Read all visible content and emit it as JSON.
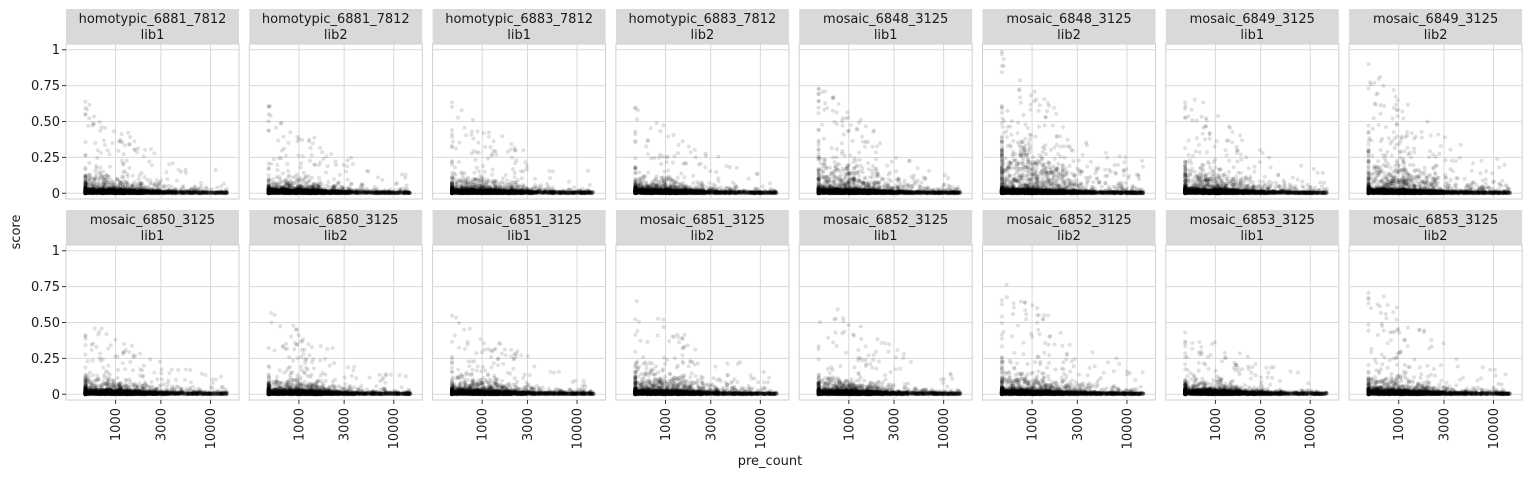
{
  "chart_data": {
    "type": "scatter",
    "layout": "facet-grid",
    "xlabel": "pre_count",
    "ylabel": "score",
    "x_scale": "log10",
    "xlim": [
      300,
      20000
    ],
    "x_ticks": [
      1000,
      3000,
      10000
    ],
    "x_tick_labels": [
      "1000",
      "3000",
      "10000"
    ],
    "ylim": [
      -0.04,
      1.04
    ],
    "y_ticks": [
      0,
      0.25,
      0.5,
      0.75,
      1
    ],
    "y_tick_labels": [
      "0",
      "0.25",
      "0.50",
      "0.75",
      "1"
    ],
    "grid": true,
    "strip_color": "#d9d9d9",
    "point_color": "#000000",
    "point_opacity": 0.12,
    "grid_color": "#d9d9d9",
    "panels": [
      {
        "name": "homotypic_6881_7812",
        "lib": "lib1",
        "x_range": [
          480,
          15000
        ],
        "max_score": 0.64,
        "spread": 0.06,
        "points": 2600
      },
      {
        "name": "homotypic_6881_7812",
        "lib": "lib2",
        "x_range": [
          480,
          15000
        ],
        "max_score": 0.62,
        "spread": 0.05,
        "points": 2600
      },
      {
        "name": "homotypic_6883_7812",
        "lib": "lib1",
        "x_range": [
          480,
          15000
        ],
        "max_score": 0.64,
        "spread": 0.05,
        "points": 2600
      },
      {
        "name": "homotypic_6883_7812",
        "lib": "lib2",
        "x_range": [
          480,
          15000
        ],
        "max_score": 0.61,
        "spread": 0.05,
        "points": 2600
      },
      {
        "name": "mosaic_6848_3125",
        "lib": "lib1",
        "x_range": [
          480,
          15000
        ],
        "max_score": 0.77,
        "spread": 0.1,
        "points": 3000
      },
      {
        "name": "mosaic_6848_3125",
        "lib": "lib2",
        "x_range": [
          480,
          15000
        ],
        "max_score": 0.99,
        "spread": 0.16,
        "points": 3400
      },
      {
        "name": "mosaic_6849_3125",
        "lib": "lib1",
        "x_range": [
          480,
          15000
        ],
        "max_score": 0.76,
        "spread": 0.08,
        "points": 2800
      },
      {
        "name": "mosaic_6849_3125",
        "lib": "lib2",
        "x_range": [
          480,
          15000
        ],
        "max_score": 0.91,
        "spread": 0.1,
        "points": 3000
      },
      {
        "name": "mosaic_6850_3125",
        "lib": "lib1",
        "x_range": [
          480,
          15000
        ],
        "max_score": 0.54,
        "spread": 0.05,
        "points": 2600
      },
      {
        "name": "mosaic_6850_3125",
        "lib": "lib2",
        "x_range": [
          480,
          15000
        ],
        "max_score": 0.62,
        "spread": 0.05,
        "points": 2600
      },
      {
        "name": "mosaic_6851_3125",
        "lib": "lib1",
        "x_range": [
          480,
          15000
        ],
        "max_score": 0.57,
        "spread": 0.05,
        "points": 2600
      },
      {
        "name": "mosaic_6851_3125",
        "lib": "lib2",
        "x_range": [
          480,
          15000
        ],
        "max_score": 0.68,
        "spread": 0.07,
        "points": 2800
      },
      {
        "name": "mosaic_6852_3125",
        "lib": "lib1",
        "x_range": [
          480,
          15000
        ],
        "max_score": 0.71,
        "spread": 0.05,
        "points": 2600
      },
      {
        "name": "mosaic_6852_3125",
        "lib": "lib2",
        "x_range": [
          480,
          15000
        ],
        "max_score": 0.85,
        "spread": 0.07,
        "points": 2800
      },
      {
        "name": "mosaic_6853_3125",
        "lib": "lib1",
        "x_range": [
          480,
          15000
        ],
        "max_score": 0.5,
        "spread": 0.04,
        "points": 2600
      },
      {
        "name": "mosaic_6853_3125",
        "lib": "lib2",
        "x_range": [
          480,
          15000
        ],
        "max_score": 0.78,
        "spread": 0.05,
        "points": 2600
      }
    ]
  }
}
